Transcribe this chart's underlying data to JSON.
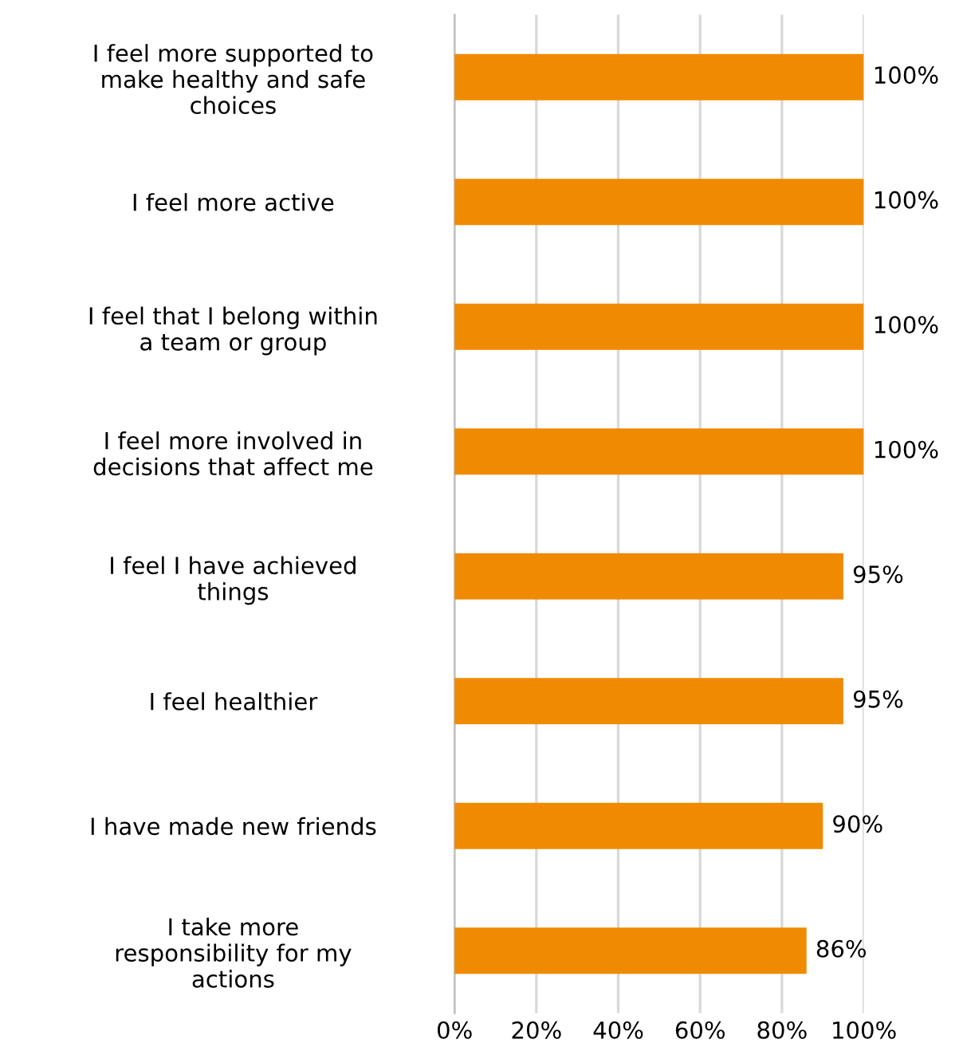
{
  "chart_data": {
    "type": "bar",
    "orientation": "horizontal",
    "categories": [
      "I feel more supported to\nmake healthy and safe\nchoices",
      "I feel more active",
      "I feel that I belong within\na team or group",
      "I feel more involved in\ndecisions that affect me",
      "I feel I have achieved\nthings",
      "I feel healthier",
      "I have made new friends",
      "I take more\nresponsibility for my\nactions"
    ],
    "values": [
      100,
      100,
      100,
      100,
      95,
      95,
      90,
      86
    ],
    "value_labels": [
      "100%",
      "100%",
      "100%",
      "100%",
      "95%",
      "95%",
      "90%",
      "86%"
    ],
    "color": "#f08a00",
    "xlim": [
      0,
      100
    ],
    "xticks": [
      {
        "value": 0,
        "label": "0%"
      },
      {
        "value": 20,
        "label": "20%"
      },
      {
        "value": 40,
        "label": "40%"
      },
      {
        "value": 60,
        "label": "60%"
      },
      {
        "value": 80,
        "label": "80%"
      },
      {
        "value": 100,
        "label": "100%"
      }
    ],
    "grid": "x",
    "legend": false
  }
}
